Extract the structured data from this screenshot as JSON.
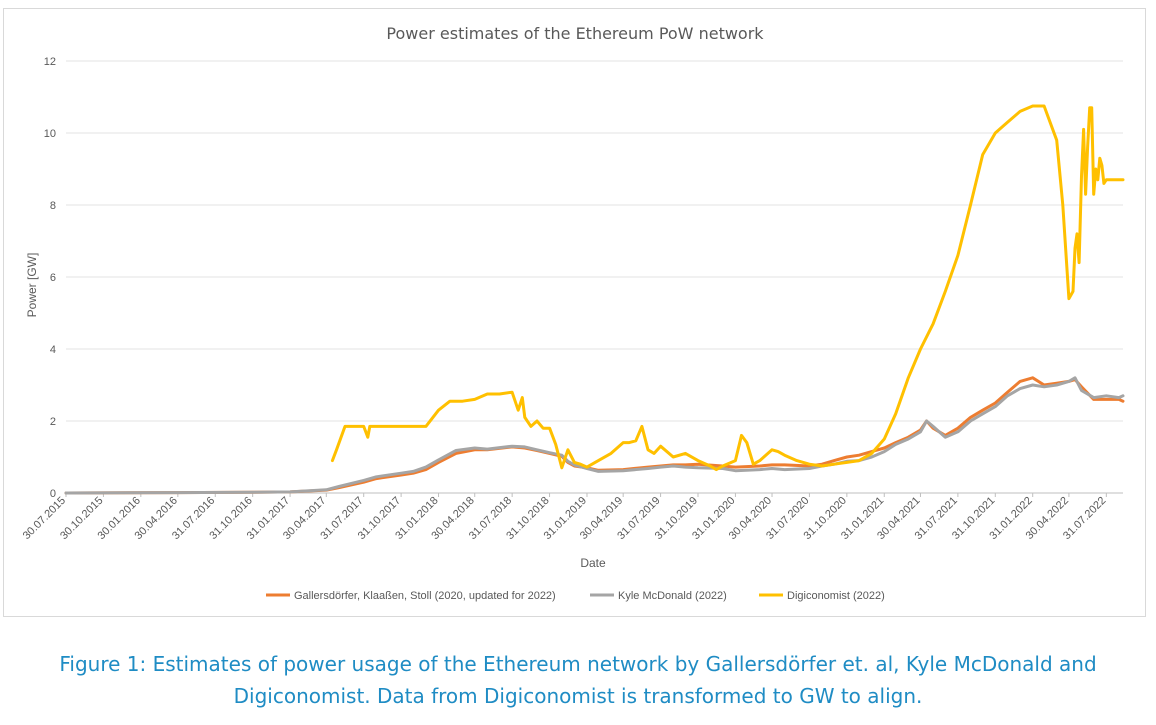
{
  "caption": "Figure 1: Estimates of power usage of the Ethereum network by Gallersdörfer et. al, Kyle McDonald and Digiconomist. Data from Digiconomist is transformed to GW to align.",
  "chart_data": {
    "type": "line",
    "title": "Power estimates of the Ethereum PoW network",
    "xlabel": "Date",
    "ylabel": "Power [GW]",
    "ylim": [
      0,
      12
    ],
    "yticks": [
      0,
      2,
      4,
      6,
      8,
      10,
      12
    ],
    "grid": "horizontal",
    "legend_position": "bottom",
    "xticks": [
      "30.07.2015",
      "30.10.2015",
      "30.01.2016",
      "30.04.2016",
      "31.07.2016",
      "31.10.2016",
      "31.01.2017",
      "30.04.2017",
      "31.07.2017",
      "31.10.2017",
      "31.01.2018",
      "30.04.2018",
      "31.07.2018",
      "31.10.2018",
      "31.01.2019",
      "30.04.2019",
      "31.07.2019",
      "31.10.2019",
      "31.01.2020",
      "30.04.2020",
      "31.07.2020",
      "31.10.2020",
      "31.01.2021",
      "30.04.2021",
      "31.07.2021",
      "31.10.2021",
      "31.01.2022",
      "30.04.2022",
      "31.07.2022"
    ],
    "series": [
      {
        "name": "Gallersdörfer, Klaaßen, Stoll (2020, updated for 2022)",
        "color": "#ed7d31",
        "x": [
          "30.07.2015",
          "30.04.2016",
          "31.10.2016",
          "31.01.2017",
          "30.04.2017",
          "31.05.2017",
          "31.07.2017",
          "31.08.2017",
          "31.10.2017",
          "30.11.2017",
          "31.12.2017",
          "31.01.2018",
          "15.03.2018",
          "30.04.2018",
          "31.05.2018",
          "31.07.2018",
          "31.08.2018",
          "30.09.2018",
          "31.10.2018",
          "30.11.2018",
          "15.12.2018",
          "31.12.2018",
          "31.01.2019",
          "28.02.2019",
          "30.04.2019",
          "30.06.2019",
          "31.07.2019",
          "31.08.2019",
          "30.09.2019",
          "31.10.2019",
          "31.12.2019",
          "31.01.2020",
          "31.03.2020",
          "30.04.2020",
          "31.05.2020",
          "31.07.2020",
          "31.08.2020",
          "30.09.2020",
          "31.10.2020",
          "30.11.2020",
          "31.12.2020",
          "31.01.2021",
          "28.02.2021",
          "31.03.2021",
          "30.04.2021",
          "15.05.2021",
          "31.05.2021",
          "30.06.2021",
          "31.07.2021",
          "31.08.2021",
          "30.09.2021",
          "31.10.2021",
          "30.11.2021",
          "31.12.2021",
          "31.01.2022",
          "28.02.2022",
          "31.03.2022",
          "30.04.2022",
          "15.05.2022",
          "31.05.2022",
          "30.06.2022",
          "31.07.2022",
          "31.08.2022",
          "10.09.2022"
        ],
        "y": [
          0,
          0.01,
          0.02,
          0.03,
          0.08,
          0.15,
          0.3,
          0.4,
          0.5,
          0.55,
          0.65,
          0.85,
          1.1,
          1.2,
          1.2,
          1.28,
          1.25,
          1.18,
          1.1,
          1.02,
          0.85,
          0.75,
          0.7,
          0.63,
          0.65,
          0.72,
          0.75,
          0.78,
          0.78,
          0.8,
          0.75,
          0.72,
          0.75,
          0.78,
          0.78,
          0.75,
          0.8,
          0.9,
          1.0,
          1.05,
          1.15,
          1.25,
          1.4,
          1.55,
          1.75,
          2.0,
          1.8,
          1.6,
          1.8,
          2.1,
          2.3,
          2.5,
          2.8,
          3.1,
          3.2,
          3.0,
          3.05,
          3.1,
          3.15,
          2.95,
          2.6,
          2.6,
          2.6,
          2.55
        ]
      },
      {
        "name": "Kyle McDonald (2022)",
        "color": "#a5a5a5",
        "x": [
          "30.07.2015",
          "30.04.2016",
          "31.10.2016",
          "31.01.2017",
          "30.04.2017",
          "31.05.2017",
          "31.07.2017",
          "31.08.2017",
          "31.10.2017",
          "30.11.2017",
          "31.12.2017",
          "31.01.2018",
          "15.03.2018",
          "30.04.2018",
          "31.05.2018",
          "31.07.2018",
          "31.08.2018",
          "30.09.2018",
          "31.10.2018",
          "30.11.2018",
          "15.12.2018",
          "31.12.2018",
          "31.01.2019",
          "28.02.2019",
          "30.04.2019",
          "30.06.2019",
          "31.07.2019",
          "31.08.2019",
          "30.09.2019",
          "31.10.2019",
          "31.12.2019",
          "31.01.2020",
          "31.03.2020",
          "30.04.2020",
          "31.05.2020",
          "31.07.2020",
          "31.08.2020",
          "30.09.2020",
          "31.10.2020",
          "30.11.2020",
          "31.12.2020",
          "31.01.2021",
          "28.02.2021",
          "31.03.2021",
          "30.04.2021",
          "15.05.2021",
          "31.05.2021",
          "30.06.2021",
          "31.07.2021",
          "31.08.2021",
          "30.09.2021",
          "31.10.2021",
          "30.11.2021",
          "31.12.2021",
          "31.01.2022",
          "28.02.2022",
          "31.03.2022",
          "30.04.2022",
          "15.05.2022",
          "31.05.2022",
          "30.06.2022",
          "31.07.2022",
          "31.08.2022",
          "10.09.2022"
        ],
        "y": [
          0,
          0.01,
          0.02,
          0.03,
          0.09,
          0.18,
          0.35,
          0.45,
          0.55,
          0.6,
          0.72,
          0.92,
          1.18,
          1.25,
          1.22,
          1.3,
          1.28,
          1.2,
          1.12,
          1.05,
          0.88,
          0.78,
          0.68,
          0.6,
          0.62,
          0.68,
          0.72,
          0.75,
          0.72,
          0.7,
          0.68,
          0.62,
          0.65,
          0.68,
          0.65,
          0.68,
          0.75,
          0.8,
          0.88,
          0.9,
          1.0,
          1.15,
          1.35,
          1.5,
          1.7,
          2.0,
          1.85,
          1.55,
          1.7,
          2.0,
          2.2,
          2.4,
          2.7,
          2.9,
          3.0,
          2.95,
          3.0,
          3.1,
          3.2,
          2.85,
          2.65,
          2.7,
          2.65,
          2.7
        ]
      },
      {
        "name": "Digiconomist (2022)",
        "color": "#ffc000",
        "x": [
          "15.05.2017",
          "25.05.2017",
          "15.06.2017",
          "31.07.2017",
          "10.08.2017",
          "15.08.2017",
          "31.08.2017",
          "30.09.2017",
          "31.10.2017",
          "30.11.2017",
          "31.12.2017",
          "31.01.2018",
          "28.02.2018",
          "31.03.2018",
          "30.04.2018",
          "31.05.2018",
          "30.06.2018",
          "31.07.2018",
          "15.08.2018",
          "25.08.2018",
          "31.08.2018",
          "15.09.2018",
          "30.09.2018",
          "15.10.2018",
          "31.10.2018",
          "15.11.2018",
          "30.11.2018",
          "15.12.2018",
          "31.12.2018",
          "15.01.2019",
          "31.01.2019",
          "28.02.2019",
          "31.03.2019",
          "30.04.2019",
          "15.05.2019",
          "31.05.2019",
          "15.06.2019",
          "30.06.2019",
          "15.07.2019",
          "31.07.2019",
          "31.08.2019",
          "30.09.2019",
          "31.10.2019",
          "30.11.2019",
          "15.12.2019",
          "31.12.2019",
          "31.01.2020",
          "15.02.2020",
          "28.02.2020",
          "15.03.2020",
          "31.03.2020",
          "30.04.2020",
          "15.05.2020",
          "31.05.2020",
          "30.06.2020",
          "31.07.2020",
          "31.08.2020",
          "30.09.2020",
          "31.10.2020",
          "30.11.2020",
          "31.12.2020",
          "31.01.2021",
          "28.02.2021",
          "31.03.2021",
          "30.04.2021",
          "31.05.2021",
          "30.06.2021",
          "31.07.2021",
          "31.08.2021",
          "30.09.2021",
          "31.10.2021",
          "30.11.2021",
          "31.12.2021",
          "31.01.2022",
          "28.02.2022",
          "31.03.2022",
          "15.04.2022",
          "30.04.2022",
          "10.05.2022",
          "15.05.2022",
          "20.05.2022",
          "25.05.2022",
          "31.05.2022",
          "05.06.2022",
          "10.06.2022",
          "15.06.2022",
          "20.06.2022",
          "25.06.2022",
          "30.06.2022",
          "05.07.2022",
          "10.07.2022",
          "15.07.2022",
          "20.07.2022",
          "25.07.2022",
          "31.07.2022",
          "05.08.2022",
          "10.08.2022",
          "15.08.2022",
          "20.08.2022",
          "25.08.2022",
          "31.08.2022",
          "05.09.2022",
          "10.09.2022"
        ],
        "y": [
          0.9,
          1.2,
          1.85,
          1.85,
          1.55,
          1.85,
          1.85,
          1.85,
          1.85,
          1.85,
          1.85,
          2.3,
          2.55,
          2.55,
          2.6,
          2.75,
          2.75,
          2.8,
          2.3,
          2.65,
          2.1,
          1.85,
          2.0,
          1.8,
          1.8,
          1.35,
          0.7,
          1.2,
          0.85,
          0.8,
          0.72,
          0.9,
          1.1,
          1.4,
          1.4,
          1.45,
          1.85,
          1.2,
          1.1,
          1.3,
          1.0,
          1.1,
          0.9,
          0.75,
          0.65,
          0.75,
          0.9,
          1.6,
          1.4,
          0.8,
          0.9,
          1.2,
          1.15,
          1.05,
          0.9,
          0.8,
          0.75,
          0.8,
          0.85,
          0.9,
          1.1,
          1.5,
          2.2,
          3.2,
          4.0,
          4.7,
          5.6,
          6.6,
          8.0,
          9.4,
          10.0,
          10.3,
          10.6,
          10.75,
          10.75,
          9.8,
          8.0,
          5.4,
          5.6,
          6.8,
          7.2,
          6.4,
          8.8,
          10.1,
          8.3,
          9.6,
          10.7,
          10.7,
          8.3,
          9.0,
          8.7,
          9.3,
          9.1,
          8.6,
          8.7,
          8.7,
          8.7,
          8.7,
          8.7,
          8.7,
          8.7,
          8.7,
          8.7
        ]
      }
    ]
  }
}
